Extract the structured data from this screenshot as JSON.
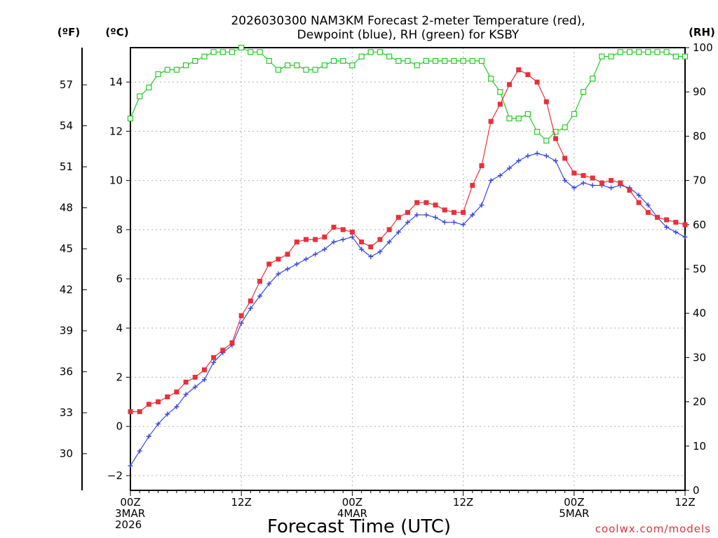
{
  "chart_data": {
    "type": "line",
    "title": [
      "2026030300 NAM3KM Forecast 2-meter Temperature (red),",
      "Dewpoint (blue), RH (green) for KSBY"
    ],
    "xlabel": "Forecast Time (UTC)",
    "credit": "coolwx.com/models",
    "units": {
      "fahrenheit": "(ºF)",
      "celsius": "(ºC)",
      "rh": "(RH)"
    },
    "x_hours": [
      0,
      1,
      2,
      3,
      4,
      5,
      6,
      7,
      8,
      9,
      10,
      11,
      12,
      13,
      14,
      15,
      16,
      17,
      18,
      19,
      20,
      21,
      22,
      23,
      24,
      25,
      26,
      27,
      28,
      29,
      30,
      31,
      32,
      33,
      34,
      35,
      36,
      37,
      38,
      39,
      40,
      41,
      42,
      43,
      44,
      45,
      46,
      47,
      48,
      49,
      50,
      51,
      52,
      53,
      54,
      55,
      56,
      57,
      58,
      59,
      60
    ],
    "xlim": [
      0,
      60
    ],
    "x_ticks": [
      {
        "hour": 0,
        "lines": [
          "00Z",
          "3MAR",
          "2026"
        ]
      },
      {
        "hour": 12,
        "lines": [
          "12Z"
        ]
      },
      {
        "hour": 24,
        "lines": [
          "00Z",
          "4MAR"
        ]
      },
      {
        "hour": 36,
        "lines": [
          "12Z"
        ]
      },
      {
        "hour": 48,
        "lines": [
          "00Z",
          "5MAR"
        ]
      },
      {
        "hour": 60,
        "lines": [
          "12Z"
        ]
      }
    ],
    "celsius_axis": {
      "ylim": [
        -2.6,
        15.4
      ],
      "ticks": [
        -2,
        0,
        2,
        4,
        6,
        8,
        10,
        12,
        14
      ]
    },
    "fahrenheit_axis": {
      "ticks": [
        30,
        33,
        36,
        39,
        42,
        45,
        48,
        51,
        54,
        57
      ]
    },
    "rh_axis": {
      "ylim": [
        0,
        100
      ],
      "ticks": [
        0,
        10,
        20,
        30,
        40,
        50,
        60,
        70,
        80,
        90,
        100
      ]
    },
    "series": [
      {
        "name": "Temperature",
        "unit": "C",
        "color": "#e8303a",
        "marker": "filled-square",
        "values": [
          0.6,
          0.6,
          0.9,
          1.0,
          1.2,
          1.4,
          1.8,
          2.0,
          2.3,
          2.8,
          3.1,
          3.4,
          4.5,
          5.1,
          5.9,
          6.6,
          6.8,
          7.0,
          7.5,
          7.6,
          7.6,
          7.7,
          8.1,
          8.0,
          7.9,
          7.5,
          7.3,
          7.6,
          8.0,
          8.5,
          8.7,
          9.1,
          9.1,
          9.0,
          8.8,
          8.7,
          8.7,
          9.8,
          10.6,
          12.4,
          13.1,
          13.9,
          14.5,
          14.3,
          14.0,
          13.2,
          11.7,
          10.9,
          10.3,
          10.2,
          10.1,
          9.9,
          10.0,
          9.9,
          9.6,
          9.1,
          8.7,
          8.5,
          8.4,
          8.3,
          8.2
        ]
      },
      {
        "name": "Dewpoint",
        "unit": "C",
        "color": "#3848e0",
        "marker": "plus",
        "values": [
          -1.6,
          -1.0,
          -0.4,
          0.1,
          0.5,
          0.8,
          1.3,
          1.6,
          1.9,
          2.6,
          3.0,
          3.3,
          4.2,
          4.8,
          5.3,
          5.8,
          6.2,
          6.4,
          6.6,
          6.8,
          7.0,
          7.2,
          7.5,
          7.6,
          7.7,
          7.2,
          6.9,
          7.1,
          7.5,
          7.9,
          8.3,
          8.6,
          8.6,
          8.5,
          8.3,
          8.3,
          8.2,
          8.6,
          9.0,
          10.0,
          10.2,
          10.5,
          10.8,
          11.0,
          11.1,
          11.0,
          10.8,
          10.0,
          9.7,
          9.9,
          9.8,
          9.8,
          9.7,
          9.8,
          9.7,
          9.4,
          9.0,
          8.5,
          8.1,
          7.9,
          7.7
        ]
      },
      {
        "name": "RH",
        "unit": "%",
        "color": "#22cc22",
        "marker": "open-square",
        "values": [
          84,
          89,
          91,
          94,
          95,
          95,
          96,
          97,
          98,
          99,
          99,
          99,
          100,
          99,
          99,
          97,
          95,
          96,
          96,
          95,
          95,
          96,
          97,
          97,
          96,
          98,
          99,
          99,
          98,
          97,
          97,
          96,
          97,
          97,
          97,
          97,
          97,
          97,
          97,
          93,
          90,
          84,
          84,
          85,
          81,
          79,
          81,
          82,
          85,
          90,
          93,
          98,
          98,
          99,
          99,
          99,
          99,
          99,
          99,
          98,
          98
        ]
      }
    ]
  }
}
